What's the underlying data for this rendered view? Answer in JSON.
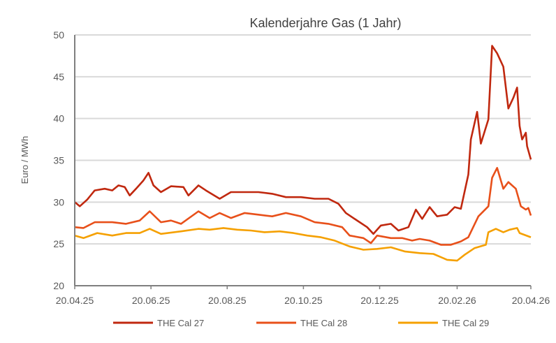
{
  "chart_data": {
    "type": "line",
    "title": "Kalenderjahre Gas (1 Jahr)",
    "xlabel": "",
    "ylabel": "Euro / MWh",
    "ylim": [
      20,
      50
    ],
    "yticks": [
      20,
      25,
      30,
      35,
      40,
      45,
      50
    ],
    "xlim": [
      0,
      365
    ],
    "x_unit": "days since 20.04.25",
    "xticks": [
      {
        "x": 0,
        "label": "20.04.25"
      },
      {
        "x": 61,
        "label": "20.06.25"
      },
      {
        "x": 122,
        "label": "20.08.25"
      },
      {
        "x": 183,
        "label": "20.10.25"
      },
      {
        "x": 244,
        "label": "20.12.25"
      },
      {
        "x": 306,
        "label": "20.02.26"
      },
      {
        "x": 365,
        "label": "20.04.26"
      }
    ],
    "grid": true,
    "legend_position": "bottom",
    "series": [
      {
        "name": "THE Cal 27",
        "color": "#C0280F",
        "x": [
          0,
          4,
          10,
          16,
          24,
          30,
          35,
          40,
          44,
          49,
          55,
          59,
          63,
          69,
          77,
          87,
          91,
          99,
          105,
          116,
          125,
          136,
          147,
          158,
          169,
          181,
          192,
          203,
          211,
          217,
          225,
          234,
          239,
          245,
          253,
          259,
          267,
          273,
          278,
          284,
          290,
          298,
          304,
          309,
          315,
          317,
          322,
          325,
          331,
          334,
          338,
          343,
          347,
          351,
          354,
          356,
          358,
          361,
          362,
          365
        ],
        "y": [
          30.0,
          29.5,
          30.3,
          31.4,
          31.6,
          31.4,
          32.0,
          31.8,
          30.8,
          31.6,
          32.6,
          33.5,
          32.0,
          31.2,
          31.9,
          31.8,
          30.8,
          32.0,
          31.4,
          30.4,
          31.2,
          31.2,
          31.2,
          31.0,
          30.6,
          30.6,
          30.4,
          30.4,
          29.8,
          28.7,
          27.9,
          27.0,
          26.2,
          27.2,
          27.4,
          26.6,
          27.0,
          29.1,
          28.0,
          29.4,
          28.3,
          28.5,
          29.4,
          29.2,
          33.3,
          37.5,
          40.8,
          37.0,
          39.9,
          48.7,
          47.8,
          46.2,
          41.2,
          42.5,
          43.7,
          39.1,
          37.5,
          38.3,
          36.7,
          35.1
        ]
      },
      {
        "name": "THE Cal 28",
        "color": "#E8501A",
        "x": [
          0,
          7,
          16,
          30,
          41,
          52,
          60,
          69,
          77,
          85,
          99,
          108,
          116,
          125,
          136,
          147,
          158,
          169,
          181,
          192,
          203,
          214,
          220,
          231,
          237,
          242,
          253,
          262,
          270,
          276,
          284,
          293,
          301,
          309,
          315,
          323,
          331,
          334,
          338,
          343,
          347,
          353,
          357,
          361,
          363,
          365
        ],
        "y": [
          27.0,
          26.9,
          27.6,
          27.6,
          27.4,
          27.8,
          28.9,
          27.6,
          27.8,
          27.4,
          28.9,
          28.1,
          28.7,
          28.1,
          28.7,
          28.5,
          28.3,
          28.7,
          28.3,
          27.6,
          27.4,
          27.0,
          26.0,
          25.7,
          25.1,
          26.0,
          25.7,
          25.7,
          25.4,
          25.6,
          25.4,
          24.9,
          24.9,
          25.3,
          25.8,
          28.3,
          29.5,
          32.9,
          34.1,
          31.6,
          32.4,
          31.6,
          29.5,
          29.1,
          29.3,
          28.4
        ]
      },
      {
        "name": "THE Cal 29",
        "color": "#F5A000",
        "x": [
          0,
          7,
          18,
          30,
          41,
          52,
          60,
          69,
          85,
          99,
          108,
          119,
          130,
          141,
          152,
          164,
          175,
          186,
          197,
          208,
          220,
          231,
          242,
          253,
          264,
          276,
          287,
          298,
          306,
          312,
          320,
          329,
          331,
          337,
          343,
          348,
          354,
          356,
          365
        ],
        "y": [
          26.0,
          25.7,
          26.3,
          26.0,
          26.3,
          26.3,
          26.8,
          26.2,
          26.5,
          26.8,
          26.7,
          26.9,
          26.7,
          26.6,
          26.4,
          26.5,
          26.3,
          26.0,
          25.8,
          25.4,
          24.7,
          24.3,
          24.4,
          24.6,
          24.1,
          23.9,
          23.8,
          23.1,
          23.0,
          23.7,
          24.5,
          24.9,
          26.4,
          26.8,
          26.4,
          26.7,
          26.9,
          26.3,
          25.8
        ]
      }
    ]
  }
}
